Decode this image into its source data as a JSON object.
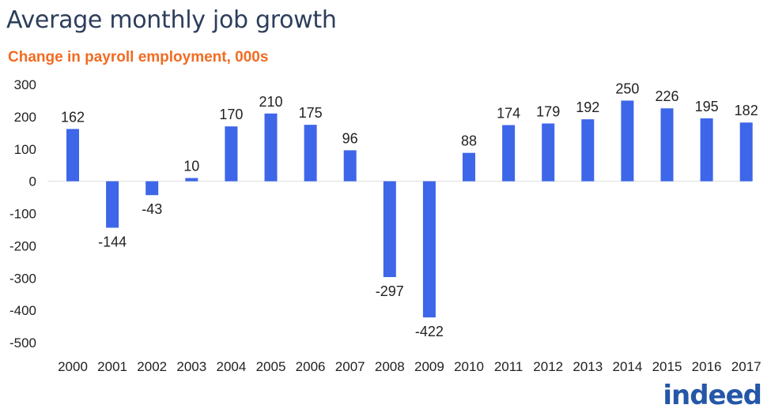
{
  "header": {
    "title": "Average monthly job growth",
    "subtitle": "Change in payroll employment, 000s"
  },
  "logo": {
    "text": "indeed"
  },
  "colors": {
    "bar": "#3d66e8",
    "title": "#2d3e5c",
    "subtitle": "#f26b21",
    "text": "#222222",
    "zero_line": "#dddddd"
  },
  "chart_data": {
    "type": "bar",
    "title": "Average monthly job growth",
    "subtitle": "Change in payroll employment, 000s",
    "xlabel": "",
    "ylabel": "",
    "categories": [
      "2000",
      "2001",
      "2002",
      "2003",
      "2004",
      "2005",
      "2006",
      "2007",
      "2008",
      "2009",
      "2010",
      "2011",
      "2012",
      "2013",
      "2014",
      "2015",
      "2016",
      "2017"
    ],
    "values": [
      162,
      -144,
      -43,
      10,
      170,
      210,
      175,
      96,
      -297,
      -422,
      88,
      174,
      179,
      192,
      250,
      226,
      195,
      182
    ],
    "data_labels": [
      "162",
      "-144",
      "-43",
      "10",
      "170",
      "210",
      "175",
      "96",
      "-297",
      "-422",
      "88",
      "174",
      "179",
      "192",
      "250",
      "226",
      "195",
      "182"
    ],
    "ylim": [
      -500,
      300
    ],
    "yticks": [
      "300",
      "200",
      "100",
      "0",
      "-100",
      "-200",
      "-300",
      "-400",
      "-500"
    ],
    "ytick_values": [
      300,
      200,
      100,
      0,
      -100,
      -200,
      -300,
      -400,
      -500
    ],
    "grid": false,
    "legend": "none"
  }
}
